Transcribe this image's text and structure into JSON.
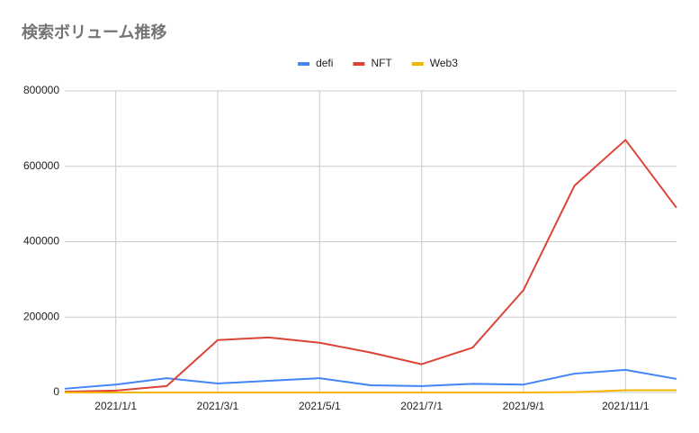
{
  "chart_data": {
    "type": "line",
    "title": "検索ボリューム推移",
    "categories": [
      null,
      "2021/1/1",
      null,
      "2021/3/1",
      null,
      "2021/5/1",
      null,
      "2021/7/1",
      null,
      "2021/9/1",
      null,
      "2021/11/1",
      null
    ],
    "series": [
      {
        "name": "defi",
        "color": "#4285f4",
        "values": [
          10000,
          21000,
          38000,
          24000,
          31000,
          38000,
          19000,
          17000,
          23000,
          21000,
          50000,
          60000,
          36000
        ]
      },
      {
        "name": "NFT",
        "color": "#db4437",
        "values": [
          2000,
          5000,
          17000,
          139000,
          146000,
          132000,
          106000,
          75000,
          119000,
          272000,
          549000,
          670000,
          490000
        ]
      },
      {
        "name": "Web3",
        "color": "#f4b400",
        "values": [
          0,
          0,
          0,
          0,
          0,
          0,
          0,
          0,
          0,
          0,
          1000,
          6000,
          6000
        ]
      }
    ],
    "ylim": [
      0,
      800000
    ],
    "yticks": [
      0,
      200000,
      400000,
      600000,
      800000
    ],
    "grid": true,
    "legend": "top"
  }
}
